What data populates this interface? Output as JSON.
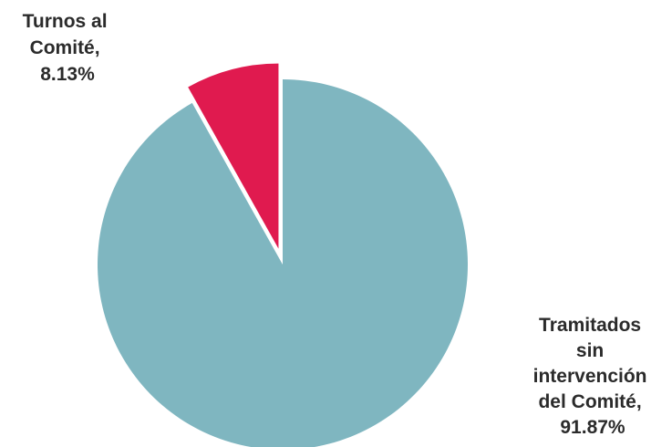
{
  "chart_data": {
    "type": "pie",
    "title": "",
    "slices": [
      {
        "label_lines": [
          "Tramitados",
          "sin",
          "intervención",
          "del Comité,",
          "91.87%"
        ],
        "value": 91.87,
        "color": "#7fb6c0",
        "exploded": false
      },
      {
        "label_lines": [
          "Turnos al",
          "Comité,",
          "8.13%"
        ],
        "value": 8.13,
        "color": "#e01a4f",
        "exploded": true
      }
    ],
    "start": "12 o'clock",
    "direction": "clockwise"
  }
}
